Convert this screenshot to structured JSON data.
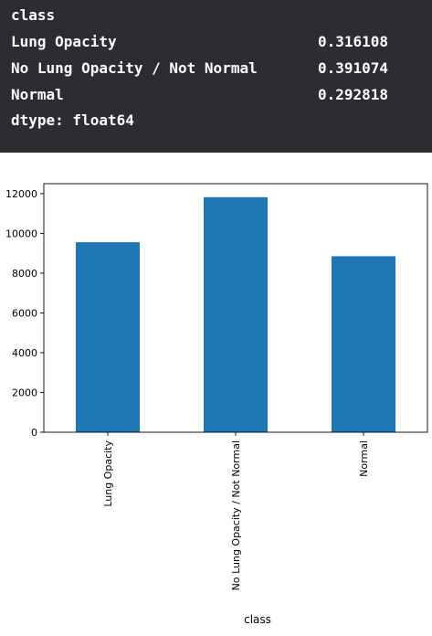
{
  "output": {
    "index_name": "class",
    "rows": [
      {
        "label": "Lung Opacity",
        "value": "0.316108"
      },
      {
        "label": "No Lung Opacity / Not Normal",
        "value": "0.391074"
      },
      {
        "label": "Normal",
        "value": "0.292818"
      }
    ],
    "dtype": "dtype: float64"
  },
  "chart_data": {
    "type": "bar",
    "categories": [
      "Lung Opacity",
      "No Lung Opacity / Not Normal",
      "Normal"
    ],
    "values": [
      9555,
      11821,
      8851
    ],
    "title": "",
    "xlabel": "class",
    "ylabel": "",
    "ylim": [
      0,
      12500
    ],
    "yticks": [
      0,
      2000,
      4000,
      6000,
      8000,
      10000,
      12000
    ],
    "bar_color": "#1f77b4",
    "grid": false
  }
}
